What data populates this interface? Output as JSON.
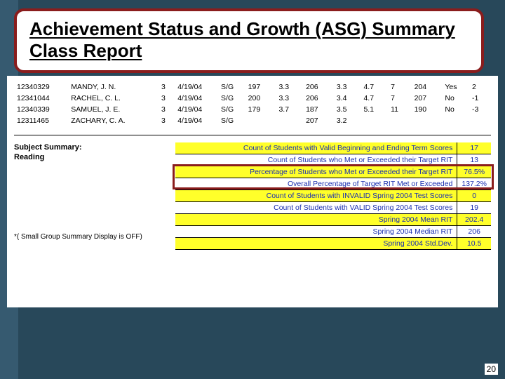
{
  "title": "Achievement Status and Growth (ASG) Summary Class Report",
  "pageNumber": "20",
  "students": [
    {
      "id": "12340329",
      "name": "MANDY, J. N.",
      "grade": "3",
      "date": "4/19/04",
      "type": "S/G",
      "c1": "197",
      "c2": "3.3",
      "c3": "206",
      "c4": "3.3",
      "c5": "4.7",
      "c6": "7",
      "c7": "204",
      "c8": "Yes",
      "c9": "2"
    },
    {
      "id": "12341044",
      "name": "RACHEL, C. L.",
      "grade": "3",
      "date": "4/19/04",
      "type": "S/G",
      "c1": "200",
      "c2": "3.3",
      "c3": "206",
      "c4": "3.4",
      "c5": "4.7",
      "c6": "7",
      "c7": "207",
      "c8": "No",
      "c9": "-1"
    },
    {
      "id": "12340339",
      "name": "SAMUEL, J. E.",
      "grade": "3",
      "date": "4/19/04",
      "type": "S/G",
      "c1": "179",
      "c2": "3.7",
      "c3": "187",
      "c4": "3.5",
      "c5": "5.1",
      "c6": "11",
      "c7": "190",
      "c8": "No",
      "c9": "-3"
    },
    {
      "id": "12311465",
      "name": "ZACHARY, C. A.",
      "grade": "3",
      "date": "4/19/04",
      "type": "S/G",
      "c1": "",
      "c2": "",
      "c3": "207",
      "c4": "3.2",
      "c5": "",
      "c6": "",
      "c7": "",
      "c8": "",
      "c9": ""
    }
  ],
  "subjectSummary": {
    "label": "Subject Summary:",
    "subject": "Reading"
  },
  "footnote": "*( Small Group Summary Display is OFF)",
  "summaryRows": [
    {
      "label": "Count of Students with Valid Beginning and Ending Term Scores",
      "value": "17",
      "highlight": true
    },
    {
      "label": "Count of Students who Met or Exceeded their Target RIT",
      "value": "13",
      "highlight": false
    },
    {
      "label": "Percentage of Students who Met or Exceeded their Target RIT",
      "value": "76.5%",
      "highlight": true
    },
    {
      "label": "Overall Percentage of Target RIT Met or Exceeded",
      "value": "137.2%",
      "highlight": false
    },
    {
      "label": "Count of Students with INVALID Spring 2004 Test Scores",
      "value": "0",
      "highlight": true
    },
    {
      "label": "Count of Students with VALID Spring 2004 Test Scores",
      "value": "19",
      "highlight": false
    },
    {
      "label": "Spring 2004 Mean RIT",
      "value": "202.4",
      "highlight": true
    },
    {
      "label": "Spring 2004 Median RIT",
      "value": "206",
      "highlight": false
    },
    {
      "label": "Spring 2004 Std.Dev.",
      "value": "10.5",
      "highlight": true
    }
  ],
  "colors": {
    "slideBg": "#28485a",
    "sideBar": "#365a70",
    "titleBorder": "#8a1d1d",
    "highlight": "#ffff2a",
    "summaryText": "#1b2fb0"
  }
}
